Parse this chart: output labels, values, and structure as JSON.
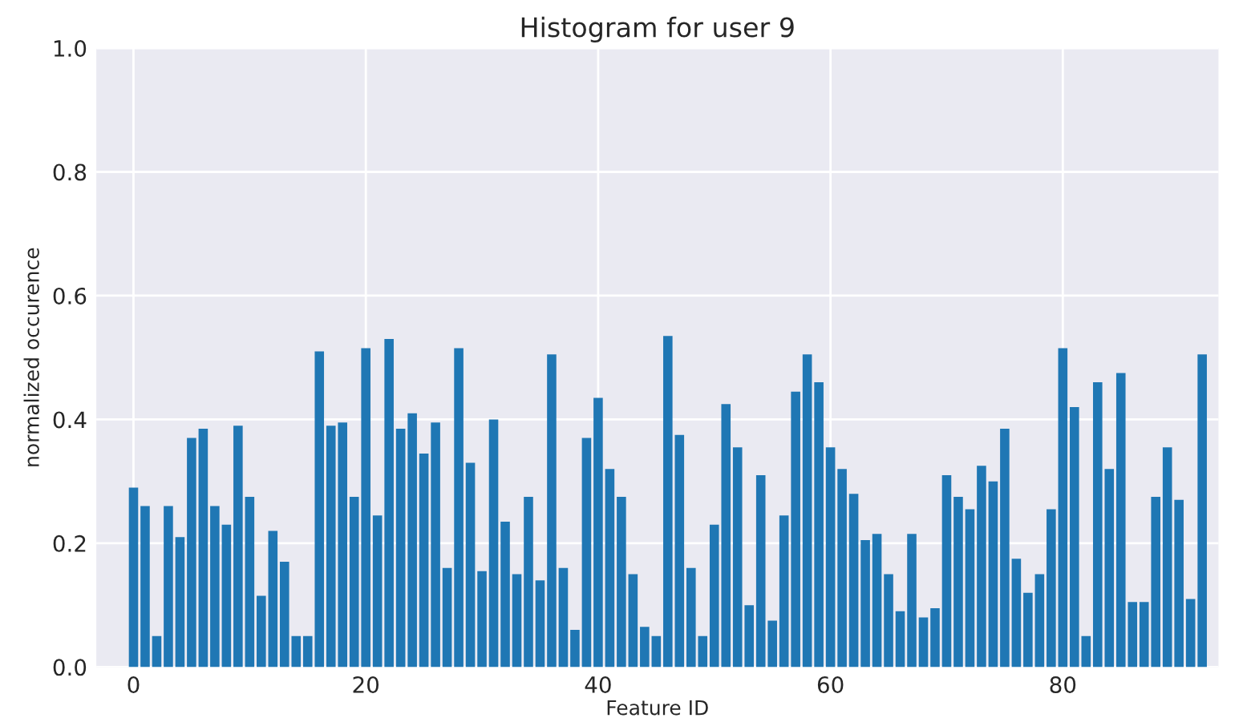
{
  "chart_data": {
    "type": "bar",
    "title": "Histogram for user 9",
    "xlabel": "Feature ID",
    "ylabel": "normalized occurence",
    "x": [
      0,
      1,
      2,
      3,
      4,
      5,
      6,
      7,
      8,
      9,
      10,
      11,
      12,
      13,
      14,
      15,
      16,
      17,
      18,
      19,
      20,
      21,
      22,
      23,
      24,
      25,
      26,
      27,
      28,
      29,
      30,
      31,
      32,
      33,
      34,
      35,
      36,
      37,
      38,
      39,
      40,
      41,
      42,
      43,
      44,
      45,
      46,
      47,
      48,
      49,
      50,
      51,
      52,
      53,
      54,
      55,
      56,
      57,
      58,
      59,
      60,
      61,
      62,
      63,
      64,
      65,
      66,
      67,
      68,
      69,
      70,
      71,
      72,
      73,
      74,
      75,
      76,
      77,
      78,
      79,
      80,
      81,
      82,
      83,
      84,
      85,
      86,
      87,
      88,
      89,
      90,
      91,
      92
    ],
    "values": [
      0.29,
      0.26,
      0.05,
      0.26,
      0.21,
      0.37,
      0.385,
      0.26,
      0.23,
      0.39,
      0.275,
      0.115,
      0.22,
      0.17,
      0.05,
      0.05,
      0.51,
      0.39,
      0.395,
      0.275,
      0.515,
      0.245,
      0.53,
      0.385,
      0.41,
      0.345,
      0.395,
      0.16,
      0.515,
      0.33,
      0.155,
      0.4,
      0.235,
      0.15,
      0.275,
      0.14,
      0.505,
      0.16,
      0.06,
      0.37,
      0.435,
      0.32,
      0.275,
      0.15,
      0.065,
      0.05,
      0.535,
      0.375,
      0.16,
      0.05,
      0.23,
      0.425,
      0.355,
      0.1,
      0.31,
      0.075,
      0.245,
      0.445,
      0.505,
      0.46,
      0.355,
      0.32,
      0.28,
      0.205,
      0.215,
      0.15,
      0.09,
      0.215,
      0.08,
      0.095,
      0.31,
      0.275,
      0.255,
      0.325,
      0.3,
      0.385,
      0.175,
      0.12,
      0.15,
      0.255,
      0.515,
      0.42,
      0.05,
      0.46,
      0.32,
      0.475,
      0.105,
      0.105,
      0.275,
      0.355,
      0.27,
      0.11,
      0.505
    ],
    "color": "#1f77b4",
    "xlim": [
      -3.2,
      93.4
    ],
    "xticks": [
      0,
      20,
      40,
      60,
      80
    ],
    "ylim": [
      0,
      1
    ],
    "yticks": [
      {
        "value": 0,
        "label": "0.0"
      },
      {
        "value": 0.2,
        "label": "0.2"
      },
      {
        "value": 0.4,
        "label": "0.4"
      },
      {
        "value": 0.6,
        "label": "0.6"
      },
      {
        "value": 0.8,
        "label": "0.8"
      },
      {
        "value": 1,
        "label": "1.0"
      }
    ],
    "grid": true
  }
}
